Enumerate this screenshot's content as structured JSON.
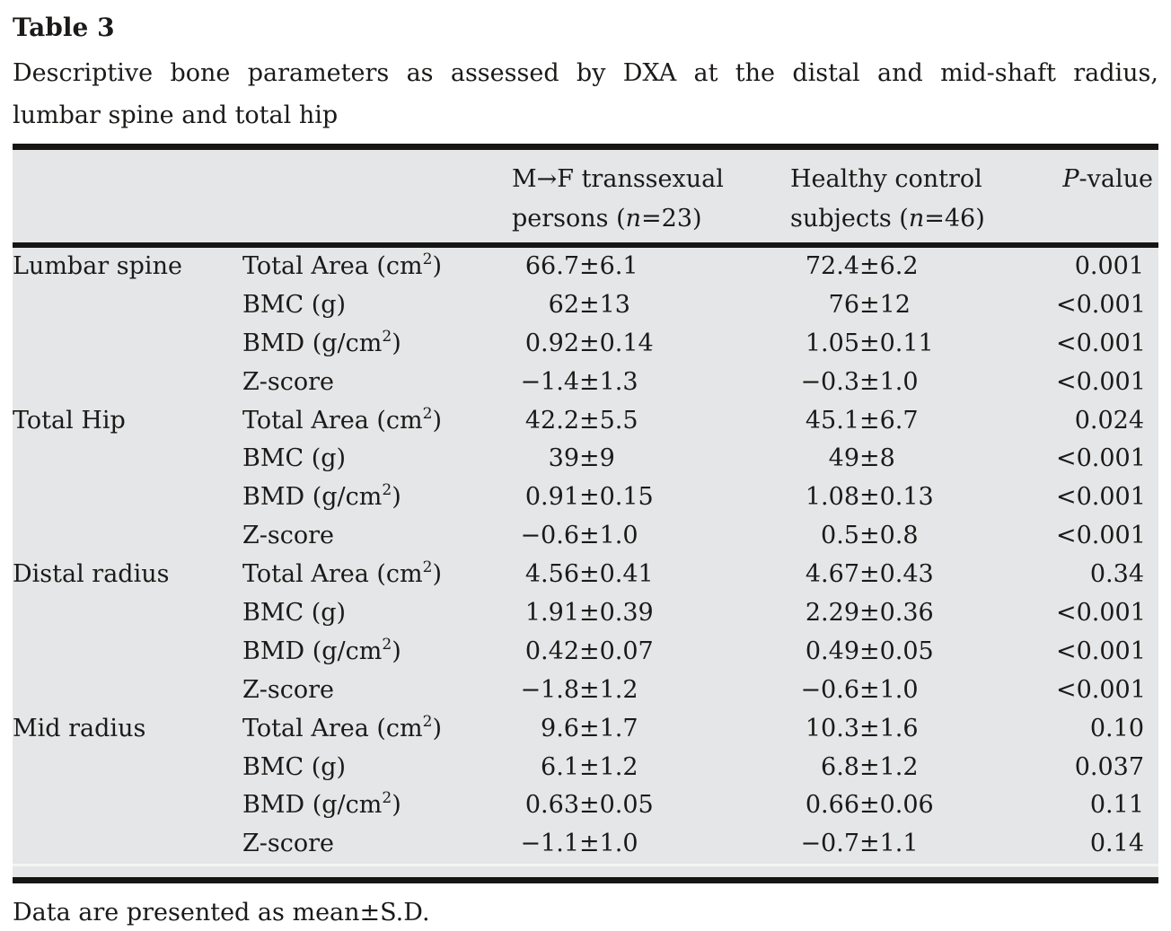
{
  "title": "Table 3",
  "caption_lines": [
    "Descriptive bone parameters as assessed by DXA at the distal and mid-shaft radius,",
    "lumbar spine and total hip"
  ],
  "footnote": "Data are presented as mean±S.D.",
  "colors": {
    "table_background": "#e5e6e7",
    "rule": "#161514",
    "text": "#1b1a19"
  },
  "table": {
    "headers": {
      "mf": {
        "line1": "M→F transsexual",
        "line2_pre": "persons (",
        "line2_italic": "n",
        "line2_post": "=23)"
      },
      "hc": {
        "line1": "Healthy control",
        "line2_pre": "subjects (",
        "line2_italic": "n",
        "line2_post": "=46)"
      },
      "p": {
        "italic": "P",
        "rest": "-value"
      }
    },
    "groups": [
      {
        "region": "Lumbar spine",
        "rows": [
          {
            "param_pre": "Total Area (cm",
            "param_sup": "2",
            "param_post": ")",
            "mf": "66.7±6.1",
            "hc": "72.4±6.2",
            "p": "0.001"
          },
          {
            "param_pre": "BMC (g)",
            "param_sup": "",
            "param_post": "",
            "mf": "62±13",
            "hc": "76±12",
            "p": "<0.001"
          },
          {
            "param_pre": "BMD (g/cm",
            "param_sup": "2",
            "param_post": ")",
            "mf": "0.92±0.14",
            "hc": "1.05±0.11",
            "p": "<0.001"
          },
          {
            "param_pre": "Z-score",
            "param_sup": "",
            "param_post": "",
            "mf": "−1.4±1.3",
            "hc": "−0.3±1.0",
            "p": "<0.001"
          }
        ]
      },
      {
        "region": "Total Hip",
        "rows": [
          {
            "param_pre": "Total Area (cm",
            "param_sup": "2",
            "param_post": ")",
            "mf": "42.2±5.5",
            "hc": "45.1±6.7",
            "p": "0.024"
          },
          {
            "param_pre": "BMC (g)",
            "param_sup": "",
            "param_post": "",
            "mf": "39±9",
            "hc": "49±8",
            "p": "<0.001"
          },
          {
            "param_pre": "BMD (g/cm",
            "param_sup": "2",
            "param_post": ")",
            "mf": "0.91±0.15",
            "hc": "1.08±0.13",
            "p": "<0.001"
          },
          {
            "param_pre": "Z-score",
            "param_sup": "",
            "param_post": "",
            "mf": "−0.6±1.0",
            "hc": "0.5±0.8",
            "p": "<0.001"
          }
        ]
      },
      {
        "region": "Distal radius",
        "rows": [
          {
            "param_pre": "Total Area (cm",
            "param_sup": "2",
            "param_post": ")",
            "mf": "4.56±0.41",
            "hc": "4.67±0.43",
            "p": "0.34"
          },
          {
            "param_pre": "BMC (g)",
            "param_sup": "",
            "param_post": "",
            "mf": "1.91±0.39",
            "hc": "2.29±0.36",
            "p": "<0.001"
          },
          {
            "param_pre": "BMD (g/cm",
            "param_sup": "2",
            "param_post": ")",
            "mf": "0.42±0.07",
            "hc": "0.49±0.05",
            "p": "<0.001"
          },
          {
            "param_pre": "Z-score",
            "param_sup": "",
            "param_post": "",
            "mf": "−1.8±1.2",
            "hc": "−0.6±1.0",
            "p": "<0.001"
          }
        ]
      },
      {
        "region": "Mid radius",
        "rows": [
          {
            "param_pre": "Total Area (cm",
            "param_sup": "2",
            "param_post": ")",
            "mf": "9.6±1.7",
            "hc": "10.3±1.6",
            "p": "0.10"
          },
          {
            "param_pre": "BMC (g)",
            "param_sup": "",
            "param_post": "",
            "mf": "6.1±1.2",
            "hc": "6.8±1.2",
            "p": "0.037"
          },
          {
            "param_pre": "BMD (g/cm",
            "param_sup": "2",
            "param_post": ")",
            "mf": "0.63±0.05",
            "hc": "0.66±0.06",
            "p": "0.11"
          },
          {
            "param_pre": "Z-score",
            "param_sup": "",
            "param_post": "",
            "mf": "−1.1±1.0",
            "hc": "−0.7±1.1",
            "p": "0.14"
          }
        ]
      }
    ]
  }
}
